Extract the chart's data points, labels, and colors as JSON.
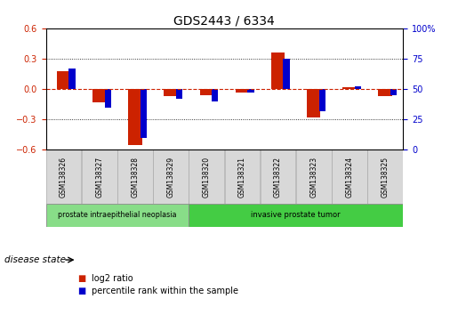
{
  "title": "GDS2443 / 6334",
  "samples": [
    "GSM138326",
    "GSM138327",
    "GSM138328",
    "GSM138329",
    "GSM138320",
    "GSM138321",
    "GSM138322",
    "GSM138323",
    "GSM138324",
    "GSM138325"
  ],
  "log2_ratio": [
    0.18,
    -0.13,
    -0.55,
    -0.07,
    -0.06,
    -0.03,
    0.36,
    -0.28,
    0.02,
    -0.07
  ],
  "percentile_rank": [
    67,
    35,
    10,
    42,
    40,
    47,
    75,
    32,
    52,
    45
  ],
  "ylim": [
    -0.6,
    0.6
  ],
  "yticks_left": [
    -0.6,
    -0.3,
    0,
    0.3,
    0.6
  ],
  "yticks_right": [
    0,
    25,
    50,
    75,
    100
  ],
  "red_color": "#cc2200",
  "blue_color": "#0000cc",
  "disease_groups": [
    {
      "label": "prostate intraepithelial neoplasia",
      "count": 4,
      "color": "#88dd88"
    },
    {
      "label": "invasive prostate tumor",
      "count": 6,
      "color": "#44cc44"
    }
  ],
  "legend_log2": "log2 ratio",
  "legend_percentile": "percentile rank within the sample",
  "xlabel_disease": "disease state",
  "title_fontsize": 10,
  "tick_fontsize": 7,
  "sample_fontsize": 5.5
}
